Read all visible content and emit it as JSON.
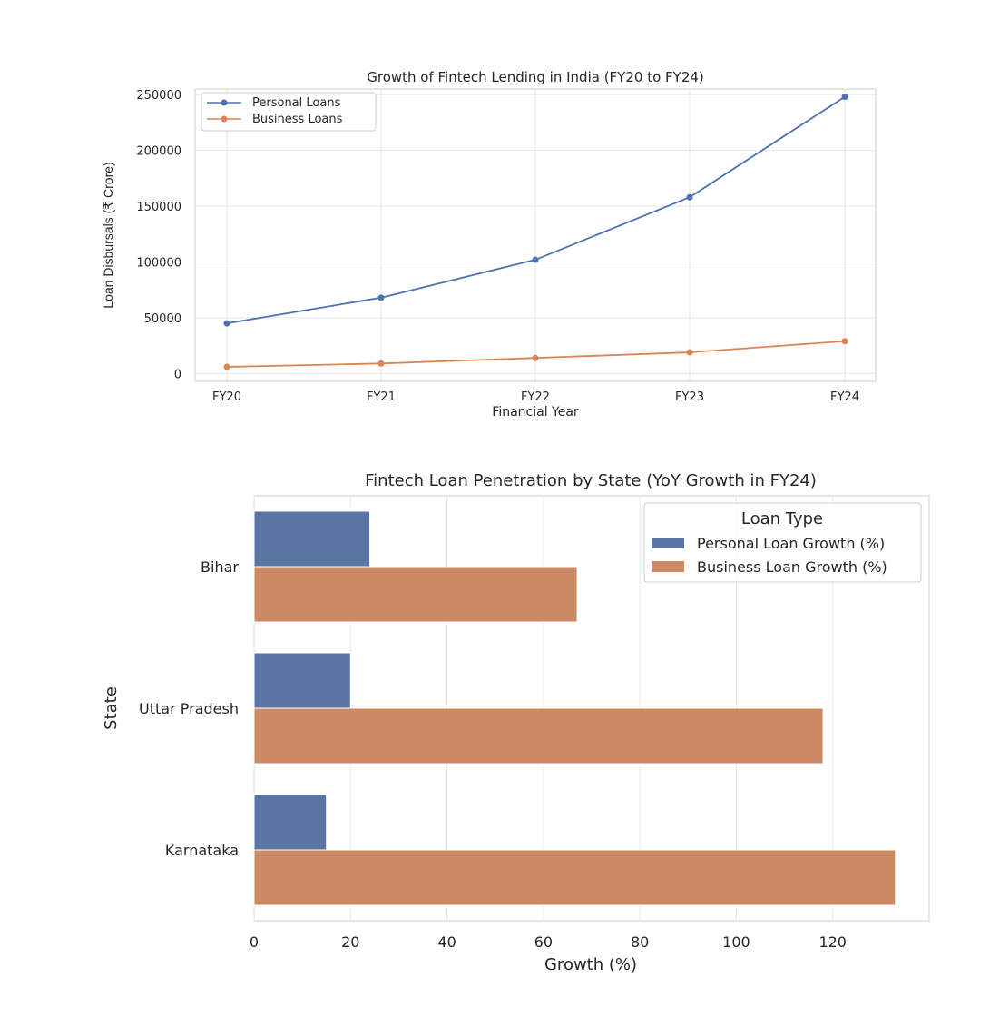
{
  "chart_data": [
    {
      "type": "line",
      "title": "Growth of Fintech Lending in India (FY20 to FY24)",
      "xlabel": "Financial Year",
      "ylabel": "Loan Disbursals (₹ Crore)",
      "categories": [
        "FY20",
        "FY21",
        "FY22",
        "FY23",
        "FY24"
      ],
      "yticks": [
        "0",
        "50000",
        "100000",
        "150000",
        "200000",
        "250000"
      ],
      "ylim": [
        -7000,
        255000
      ],
      "series": [
        {
          "name": "Personal Loans",
          "color": "#4c72b0",
          "values": [
            45000,
            68000,
            102000,
            158000,
            248000
          ]
        },
        {
          "name": "Business Loans",
          "color": "#dd8452",
          "values": [
            6000,
            9000,
            14000,
            19000,
            29000
          ]
        }
      ],
      "legend": "top-left",
      "grid": true
    },
    {
      "type": "bar",
      "orientation": "horizontal",
      "title": "Fintech Loan Penetration by State (YoY Growth in FY24)",
      "xlabel": "Growth (%)",
      "ylabel": "State",
      "categories": [
        "Bihar",
        "Uttar Pradesh",
        "Karnataka"
      ],
      "xticks": [
        "0",
        "20",
        "40",
        "60",
        "80",
        "100",
        "120"
      ],
      "xlim": [
        0,
        140
      ],
      "legend_title": "Loan Type",
      "series": [
        {
          "name": "Personal Loan Growth (%)",
          "color": "#5875a4",
          "values": [
            24,
            20,
            15
          ]
        },
        {
          "name": "Business Loan Growth (%)",
          "color": "#cc8963",
          "values": [
            67,
            118,
            133
          ]
        }
      ],
      "legend": "top-right",
      "grid": true
    }
  ]
}
